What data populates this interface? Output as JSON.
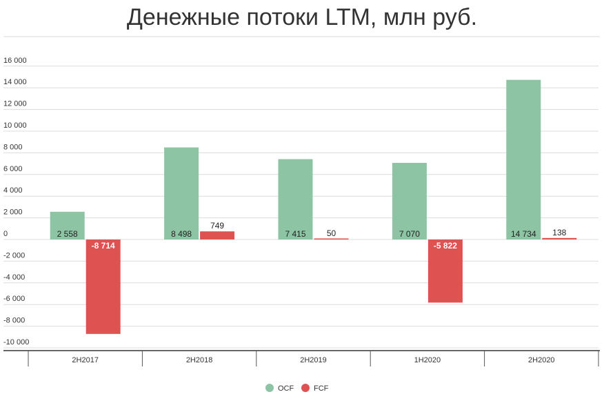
{
  "chart_data": {
    "type": "bar",
    "title": "Денежные потоки LTM, млн руб.",
    "categories": [
      "2H2017",
      "2H2018",
      "2H2019",
      "1H2020",
      "2H2020"
    ],
    "series": [
      {
        "name": "OCF",
        "values": [
          2558,
          8498,
          7415,
          7070,
          14734
        ],
        "labels": [
          "2 558",
          "8 498",
          "7 415",
          "7 070",
          "14 734"
        ],
        "color": "#8cc4a4"
      },
      {
        "name": "FCF",
        "values": [
          -8714,
          749,
          50,
          -5822,
          138
        ],
        "labels": [
          "-8 714",
          "749",
          "50",
          "-5 822",
          "138"
        ],
        "color": "#de5252"
      }
    ],
    "yticks": [
      16000,
      14000,
      12000,
      10000,
      8000,
      6000,
      4000,
      2000,
      0,
      -2000,
      -4000,
      -6000,
      -8000,
      -10000
    ],
    "ytick_labels": [
      "16 000",
      "14 000",
      "12 000",
      "10 000",
      "8 000",
      "6 000",
      "4 000",
      "2 000",
      "0",
      "-2 000",
      "-4 000",
      "-6 000",
      "-8 000",
      "-10 000"
    ],
    "ylim": [
      -10000,
      16000
    ],
    "grid": true,
    "legend_position": "bottom"
  }
}
